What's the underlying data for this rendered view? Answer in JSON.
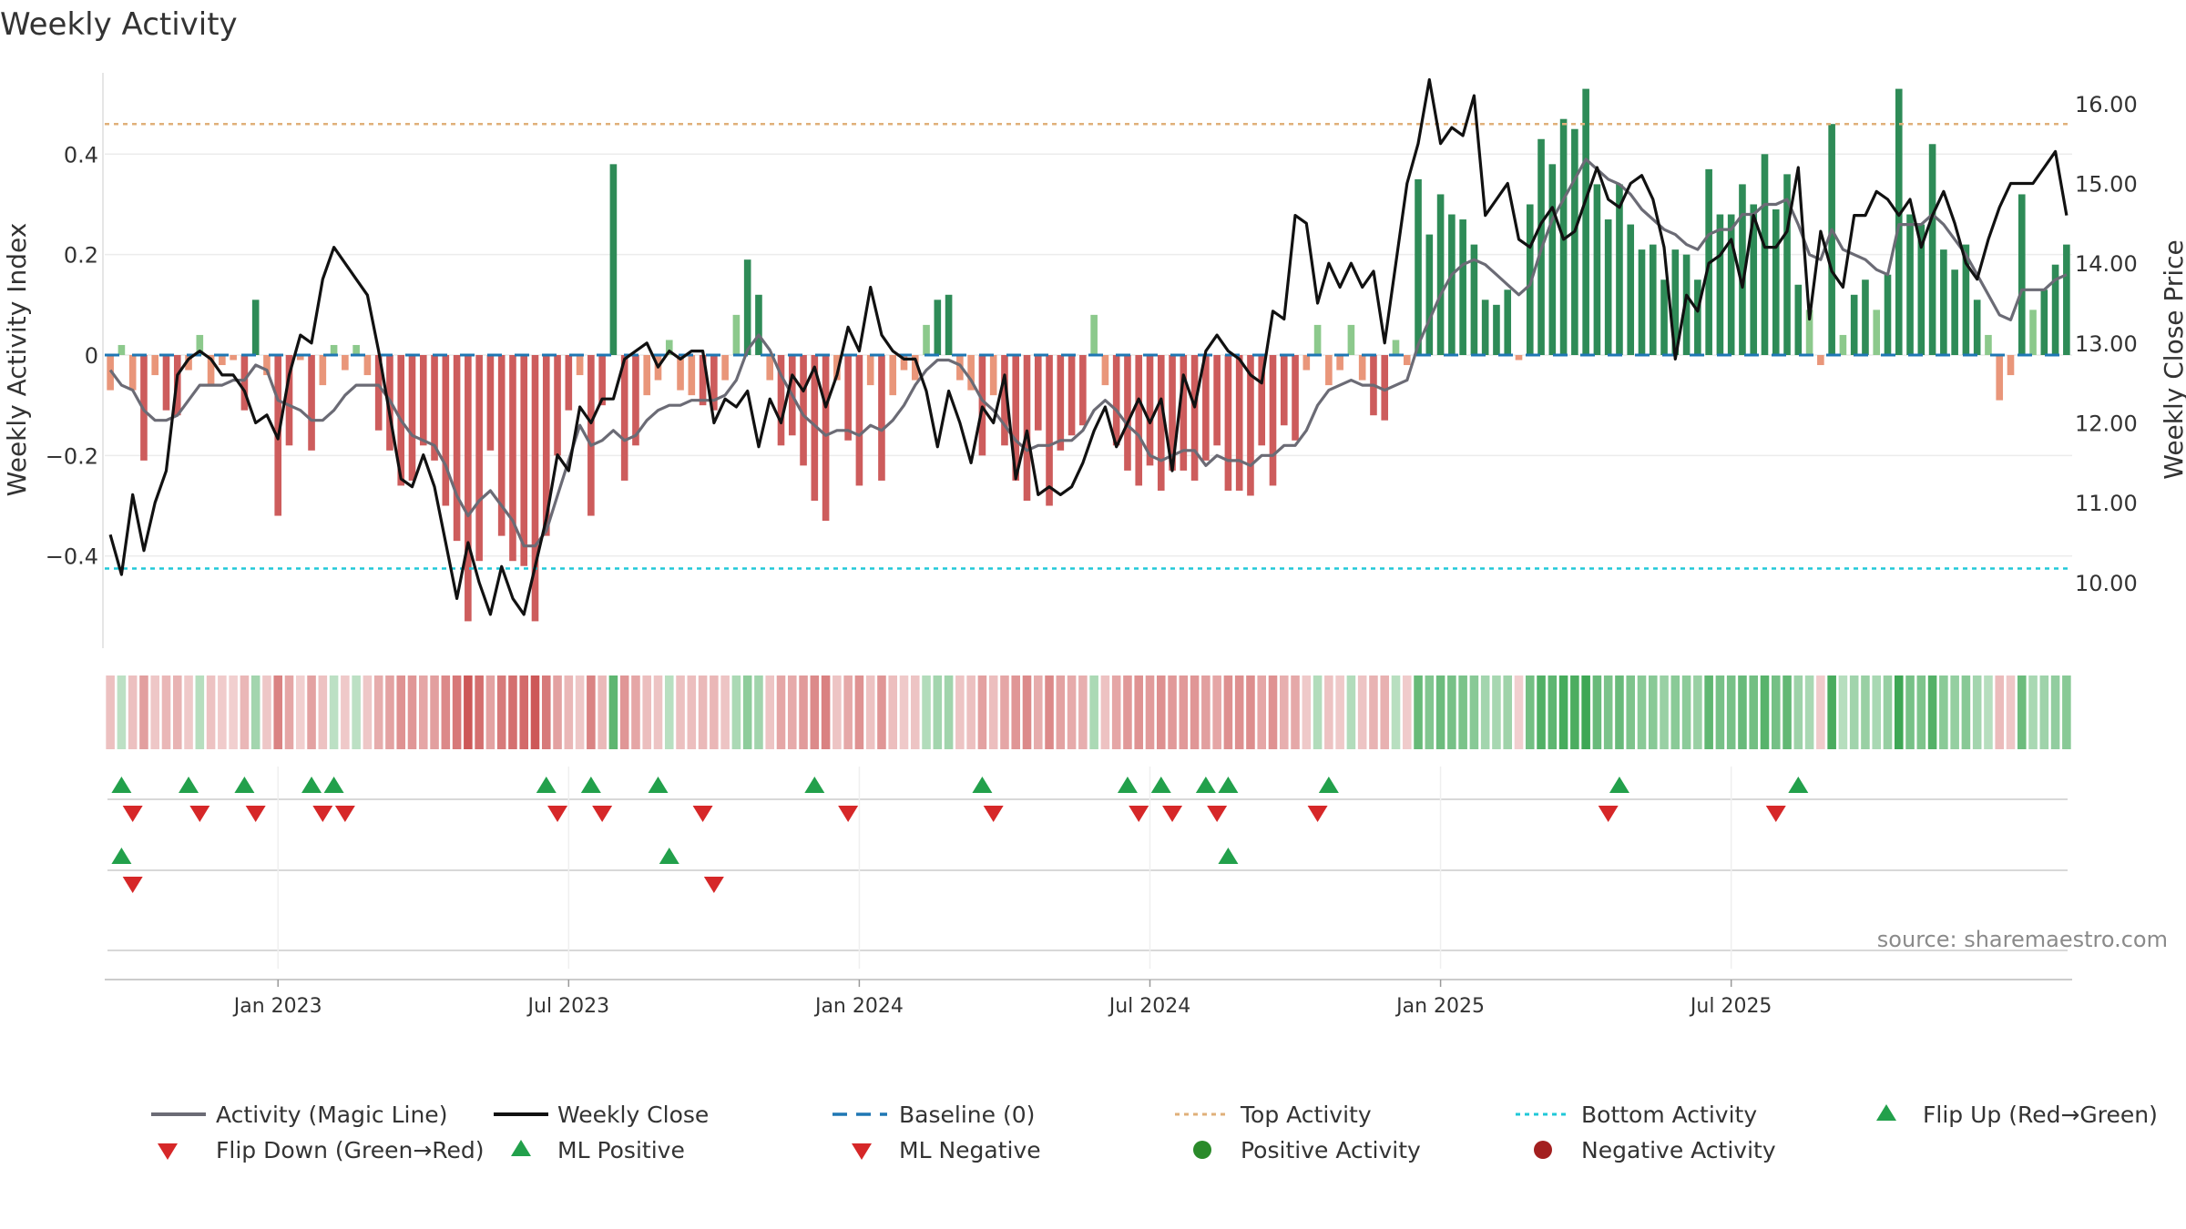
{
  "chart_data": {
    "type": "bar",
    "title": "Weekly Activity",
    "ylabel_left": "Weekly Activity Index",
    "ylabel_right": "Weekly Close Price",
    "ylim_left": [
      -0.58,
      0.58
    ],
    "ylim_right": [
      9.2,
      16.5
    ],
    "yticks_left": [
      "0.4",
      "0.2",
      "0",
      "−0.2",
      "−0.4"
    ],
    "ytick_values_left": [
      0.4,
      0.2,
      0,
      -0.2,
      -0.4
    ],
    "yticks_right": [
      "16.00",
      "15.00",
      "14.00",
      "13.00",
      "12.00",
      "11.00",
      "10.00"
    ],
    "ytick_values_right": [
      16,
      15,
      14,
      13,
      12,
      11,
      10
    ],
    "top_activity_level": 0.46,
    "bottom_activity_level": -0.425,
    "x_start": "2022-09-19",
    "x_tick_labels": [
      "Jan 2023",
      "Jul 2023",
      "Jan 2024",
      "Jul 2024",
      "Jan 2025",
      "Jul 2025"
    ],
    "x_tick_weeks": [
      15,
      41,
      67,
      93,
      119,
      145
    ],
    "activity": [
      -0.07,
      0.02,
      -0.07,
      -0.21,
      -0.04,
      -0.11,
      -0.12,
      -0.03,
      0.04,
      -0.06,
      -0.02,
      -0.01,
      -0.11,
      0.11,
      -0.04,
      -0.32,
      -0.18,
      -0.01,
      -0.19,
      -0.06,
      0.02,
      -0.03,
      0.02,
      -0.04,
      -0.15,
      -0.19,
      -0.26,
      -0.25,
      -0.18,
      -0.21,
      -0.3,
      -0.37,
      -0.53,
      -0.41,
      -0.19,
      -0.36,
      -0.41,
      -0.42,
      -0.53,
      -0.36,
      -0.2,
      -0.11,
      -0.04,
      -0.32,
      -0.1,
      0.38,
      -0.25,
      -0.18,
      -0.08,
      -0.05,
      0.03,
      -0.07,
      -0.08,
      -0.1,
      -0.11,
      -0.05,
      0.08,
      0.19,
      0.12,
      -0.05,
      -0.18,
      -0.16,
      -0.22,
      -0.29,
      -0.33,
      -0.05,
      -0.17,
      -0.26,
      -0.06,
      -0.25,
      -0.08,
      -0.03,
      -0.05,
      0.06,
      0.11,
      0.12,
      -0.05,
      -0.07,
      -0.2,
      -0.08,
      -0.18,
      -0.25,
      -0.29,
      -0.15,
      -0.3,
      -0.19,
      -0.16,
      -0.14,
      0.08,
      -0.06,
      -0.18,
      -0.23,
      -0.26,
      -0.22,
      -0.27,
      -0.23,
      -0.23,
      -0.25,
      -0.21,
      -0.18,
      -0.27,
      -0.27,
      -0.28,
      -0.18,
      -0.26,
      -0.14,
      -0.17,
      -0.03,
      0.06,
      -0.06,
      -0.03,
      0.06,
      -0.05,
      -0.12,
      -0.13,
      0.03,
      -0.02,
      0.35,
      0.24,
      0.32,
      0.28,
      0.27,
      0.22,
      0.11,
      0.1,
      0.13,
      -0.01,
      0.3,
      0.43,
      0.38,
      0.47,
      0.45,
      0.53,
      0.34,
      0.27,
      0.34,
      0.26,
      0.21,
      0.22,
      0.15,
      0.21,
      0.2,
      0.15,
      0.37,
      0.28,
      0.28,
      0.34,
      0.3,
      0.4,
      0.29,
      0.36,
      0.14,
      0.09,
      -0.02,
      0.46,
      0.04,
      0.12,
      0.15,
      0.09,
      0.16,
      0.53,
      0.28,
      0.26,
      0.42,
      0.21,
      0.17,
      0.22,
      0.11,
      0.04,
      -0.09,
      -0.04,
      0.32,
      0.09,
      0.13,
      0.18,
      0.22
    ],
    "magic_line": [
      -0.03,
      -0.06,
      -0.07,
      -0.11,
      -0.13,
      -0.13,
      -0.12,
      -0.09,
      -0.06,
      -0.06,
      -0.06,
      -0.05,
      -0.05,
      -0.02,
      -0.03,
      -0.09,
      -0.1,
      -0.11,
      -0.13,
      -0.13,
      -0.11,
      -0.08,
      -0.06,
      -0.06,
      -0.06,
      -0.09,
      -0.13,
      -0.16,
      -0.17,
      -0.18,
      -0.22,
      -0.28,
      -0.32,
      -0.29,
      -0.27,
      -0.3,
      -0.33,
      -0.38,
      -0.38,
      -0.35,
      -0.28,
      -0.21,
      -0.14,
      -0.18,
      -0.17,
      -0.15,
      -0.17,
      -0.16,
      -0.13,
      -0.11,
      -0.1,
      -0.1,
      -0.09,
      -0.09,
      -0.09,
      -0.08,
      -0.05,
      0.01,
      0.04,
      0.01,
      -0.04,
      -0.08,
      -0.12,
      -0.14,
      -0.16,
      -0.15,
      -0.15,
      -0.16,
      -0.14,
      -0.15,
      -0.13,
      -0.1,
      -0.06,
      -0.03,
      -0.01,
      -0.01,
      -0.02,
      -0.05,
      -0.09,
      -0.11,
      -0.14,
      -0.17,
      -0.19,
      -0.18,
      -0.18,
      -0.17,
      -0.17,
      -0.15,
      -0.11,
      -0.09,
      -0.11,
      -0.14,
      -0.16,
      -0.2,
      -0.21,
      -0.2,
      -0.19,
      -0.19,
      -0.22,
      -0.2,
      -0.21,
      -0.21,
      -0.22,
      -0.2,
      -0.2,
      -0.18,
      -0.18,
      -0.15,
      -0.1,
      -0.07,
      -0.06,
      -0.05,
      -0.06,
      -0.06,
      -0.07,
      -0.06,
      -0.05,
      0.02,
      0.07,
      0.12,
      0.16,
      0.18,
      0.19,
      0.18,
      0.16,
      0.14,
      0.12,
      0.14,
      0.21,
      0.27,
      0.31,
      0.35,
      0.39,
      0.37,
      0.35,
      0.34,
      0.32,
      0.29,
      0.27,
      0.25,
      0.24,
      0.22,
      0.21,
      0.24,
      0.25,
      0.25,
      0.28,
      0.28,
      0.3,
      0.3,
      0.31,
      0.26,
      0.2,
      0.19,
      0.25,
      0.21,
      0.2,
      0.19,
      0.17,
      0.16,
      0.26,
      0.26,
      0.26,
      0.28,
      0.26,
      0.23,
      0.2,
      0.16,
      0.12,
      0.08,
      0.07,
      0.13,
      0.13,
      0.13,
      0.15,
      0.16
    ],
    "weekly_close": [
      10.6,
      10.1,
      11.1,
      10.4,
      11.0,
      11.4,
      12.6,
      12.8,
      12.9,
      12.8,
      12.6,
      12.6,
      12.4,
      12.0,
      12.1,
      11.8,
      12.6,
      13.1,
      13.0,
      13.8,
      14.2,
      14.0,
      13.8,
      13.6,
      12.9,
      12.1,
      11.3,
      11.2,
      11.6,
      11.2,
      10.5,
      9.8,
      10.5,
      10.0,
      9.6,
      10.2,
      9.8,
      9.6,
      10.2,
      10.8,
      11.6,
      11.4,
      12.2,
      12.0,
      12.3,
      12.3,
      12.8,
      12.9,
      13.0,
      12.7,
      12.9,
      12.8,
      12.9,
      12.9,
      12.0,
      12.3,
      12.2,
      12.4,
      11.7,
      12.3,
      12.0,
      12.6,
      12.4,
      12.7,
      12.2,
      12.6,
      13.2,
      12.9,
      13.7,
      13.1,
      12.9,
      12.8,
      12.8,
      12.4,
      11.7,
      12.4,
      12.0,
      11.5,
      12.2,
      12.0,
      12.6,
      11.3,
      11.9,
      11.1,
      11.2,
      11.1,
      11.2,
      11.5,
      11.9,
      12.2,
      11.7,
      12.0,
      12.3,
      12.0,
      12.3,
      11.4,
      12.6,
      12.2,
      12.9,
      13.1,
      12.9,
      12.8,
      12.6,
      12.5,
      13.4,
      13.3,
      14.6,
      14.5,
      13.5,
      14.0,
      13.7,
      14.0,
      13.7,
      13.9,
      13.0,
      14.0,
      15.0,
      15.5,
      16.3,
      15.5,
      15.7,
      15.6,
      16.1,
      14.6,
      14.8,
      15.0,
      14.3,
      14.2,
      14.5,
      14.7,
      14.3,
      14.4,
      14.8,
      15.2,
      14.8,
      14.7,
      15.0,
      15.1,
      14.8,
      14.2,
      12.8,
      13.6,
      13.4,
      14.0,
      14.1,
      14.3,
      13.7,
      14.6,
      14.2,
      14.2,
      14.4,
      15.2,
      13.3,
      14.4,
      13.9,
      13.7,
      14.6,
      14.6,
      14.9,
      14.8,
      14.6,
      14.8,
      14.2,
      14.6,
      14.9,
      14.5,
      14.0,
      13.8,
      14.3,
      14.7,
      15.0,
      15.0,
      15.0,
      15.2,
      15.4,
      14.6
    ],
    "heat_strip_sign": "same as activity",
    "flip_up_weeks": [
      1,
      7,
      12,
      18,
      20,
      39,
      43,
      49,
      63,
      78,
      91,
      94,
      98,
      100,
      109,
      135,
      151
    ],
    "flip_down_weeks": [
      2,
      8,
      13,
      19,
      21,
      40,
      44,
      53,
      66,
      79,
      92,
      95,
      99,
      108,
      134,
      149
    ],
    "ml_positive_weeks": [
      1,
      50,
      100
    ],
    "ml_negative_weeks": [
      2,
      54
    ],
    "colors": {
      "positive_strong": "#2e8b57",
      "positive_light": "#8cc98c",
      "negative_strong": "#cd5c5c",
      "negative_light": "#e9967a",
      "magic_line": "#6b6b75",
      "weekly_close": "#111111",
      "baseline": "#1f77b4",
      "top_activity": "#e0b07a",
      "bottom_activity": "#20c8d8",
      "flip_up": "#22a04b",
      "flip_down": "#d62728",
      "positive_activity_dot": "#2a8a2a",
      "negative_activity_dot": "#a31f1f"
    },
    "legend": [
      {
        "label": "Activity (Magic Line)",
        "marker": "line-gray"
      },
      {
        "label": "Weekly Close",
        "marker": "line-black"
      },
      {
        "label": "Baseline (0)",
        "marker": "dashed-blue"
      },
      {
        "label": "Top Activity",
        "marker": "dotted-orange"
      },
      {
        "label": "Bottom Activity",
        "marker": "dotted-cyan"
      },
      {
        "label": "Flip Up (Red→Green)",
        "marker": "triangle-up-green"
      },
      {
        "label": "Flip Down (Green→Red)",
        "marker": "triangle-down-red"
      },
      {
        "label": "ML Positive",
        "marker": "triangle-up-green"
      },
      {
        "label": "ML Negative",
        "marker": "triangle-down-red"
      },
      {
        "label": "Positive Activity",
        "marker": "dot-green"
      },
      {
        "label": "Negative Activity",
        "marker": "dot-red"
      }
    ],
    "source": "source: sharemaestro.com"
  }
}
